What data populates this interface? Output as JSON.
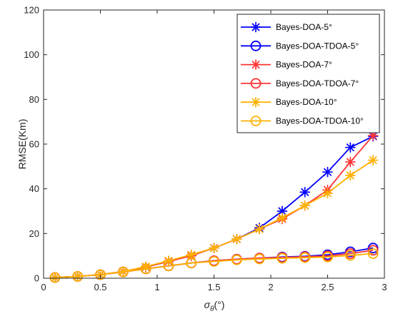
{
  "chart_data": {
    "type": "line",
    "title": "",
    "xlabel_main": "σ",
    "xlabel_sub": "θ",
    "xlabel_unit": "(°)",
    "ylabel": "RMSE(Km)",
    "xlim": [
      0,
      3
    ],
    "ylim": [
      0,
      120
    ],
    "xticks": [
      0,
      0.5,
      1,
      1.5,
      2,
      2.5,
      3
    ],
    "xtick_labels": [
      "0",
      "0.5",
      "1",
      "1.5",
      "2",
      "2.5",
      "3"
    ],
    "yticks": [
      0,
      20,
      40,
      60,
      80,
      100,
      120
    ],
    "ytick_labels": [
      "0",
      "20",
      "40",
      "60",
      "80",
      "100",
      "120"
    ],
    "grid": false,
    "legend_position": "top-right",
    "x": [
      0.1,
      0.3,
      0.5,
      0.7,
      0.9,
      1.1,
      1.3,
      1.5,
      1.7,
      1.9,
      2.1,
      2.3,
      2.5,
      2.7,
      2.9
    ],
    "series": [
      {
        "name": "Bayes-DOA-5°",
        "color": "#0000ff",
        "marker": "asterisk",
        "values": [
          0.3,
          0.8,
          1.6,
          3.0,
          5.0,
          7.5,
          10.2,
          13.5,
          17.5,
          22.5,
          30.0,
          38.5,
          47.5,
          58.5,
          63.5
        ]
      },
      {
        "name": "Bayes-DOA-TDOA-5°",
        "color": "#0000ff",
        "marker": "circle",
        "values": [
          0.3,
          0.8,
          1.6,
          2.8,
          4.2,
          5.5,
          6.8,
          7.8,
          8.5,
          9.0,
          9.5,
          9.8,
          10.5,
          11.8,
          13.5
        ]
      },
      {
        "name": "Bayes-DOA-7°",
        "color": "#ff3333",
        "marker": "asterisk",
        "values": [
          0.3,
          0.8,
          1.6,
          3.0,
          5.0,
          7.5,
          10.0,
          13.5,
          17.5,
          22.0,
          26.5,
          32.5,
          39.5,
          52.0,
          63.8
        ]
      },
      {
        "name": "Bayes-DOA-TDOA-7°",
        "color": "#ff3333",
        "marker": "circle",
        "values": [
          0.3,
          0.8,
          1.6,
          2.8,
          4.2,
          5.5,
          6.8,
          7.8,
          8.5,
          9.0,
          9.3,
          9.6,
          10.0,
          11.0,
          12.5
        ]
      },
      {
        "name": "Bayes-DOA-10°",
        "color": "#ffb000",
        "marker": "asterisk",
        "values": [
          0.3,
          0.8,
          1.6,
          3.0,
          5.2,
          7.8,
          10.5,
          13.5,
          17.5,
          22.0,
          27.0,
          32.5,
          38.0,
          46.0,
          52.8
        ]
      },
      {
        "name": "Bayes-DOA-TDOA-10°",
        "color": "#ffb000",
        "marker": "circle",
        "values": [
          0.3,
          0.8,
          1.6,
          2.8,
          4.2,
          5.5,
          6.8,
          7.5,
          8.2,
          8.6,
          8.9,
          9.2,
          9.5,
          10.2,
          11.0
        ]
      }
    ]
  }
}
